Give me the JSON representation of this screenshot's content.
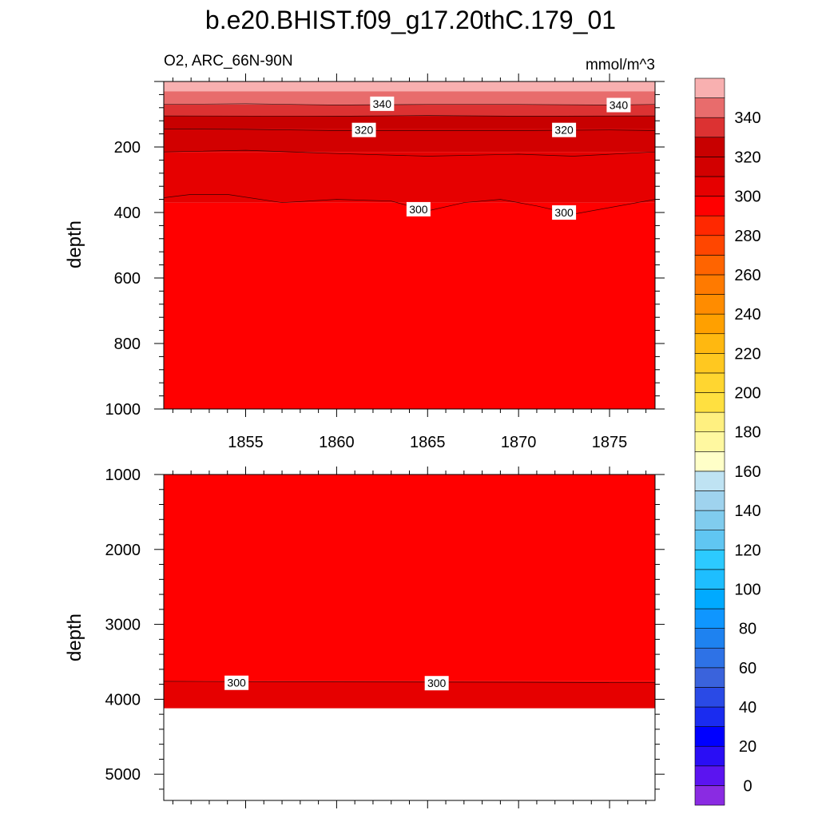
{
  "chart_data": {
    "type": "heatmap",
    "title": "b.e20.BHIST.f09_g17.20thC.179_01",
    "subtitle_left": "O2, ARC_66N-90N",
    "subtitle_right": "mmol/m^3",
    "colorbar": {
      "levels": [
        0,
        10,
        20,
        30,
        40,
        50,
        60,
        70,
        80,
        90,
        100,
        110,
        120,
        130,
        140,
        150,
        160,
        170,
        180,
        190,
        200,
        210,
        220,
        230,
        240,
        250,
        260,
        270,
        280,
        290,
        300,
        310,
        320,
        330,
        340,
        350
      ],
      "tick_labels": [
        "0",
        "20",
        "40",
        "60",
        "80",
        "100",
        "120",
        "140",
        "160",
        "180",
        "200",
        "220",
        "240",
        "260",
        "280",
        "300",
        "320",
        "340"
      ],
      "colors": [
        "#8a2be2",
        "#5b14f0",
        "#2a0ef5",
        "#0000ff",
        "#1a2cf0",
        "#2a4ae6",
        "#3a63dc",
        "#2e72e6",
        "#1e82f0",
        "#0f96ff",
        "#00aaff",
        "#1ebeff",
        "#2ccaff",
        "#60c6f2",
        "#80ccee",
        "#9fd3ee",
        "#bfe3f3",
        "#ffffc8",
        "#fff8a0",
        "#fff080",
        "#ffe040",
        "#ffd630",
        "#ffc820",
        "#ffb810",
        "#ffa000",
        "#ff8c00",
        "#ff7a00",
        "#ff6400",
        "#ff4600",
        "#ff2800",
        "#ff0000",
        "#e60000",
        "#d20000",
        "#c80000",
        "#dc3232",
        "#e86c6c",
        "#f8b0b0"
      ]
    },
    "panels": [
      {
        "xlim": [
          1850.5,
          1877.5
        ],
        "xticks": [
          1855,
          1860,
          1865,
          1870,
          1875
        ],
        "ylim": [
          0,
          1000
        ],
        "ylabel": "depth",
        "yticks": [
          200,
          400,
          600,
          800,
          1000
        ],
        "bands": [
          {
            "top": 0,
            "bottom": 30,
            "value": 355
          },
          {
            "top": 30,
            "bottom": 70,
            "value": 345
          },
          {
            "top": 70,
            "bottom": 105,
            "value": 335
          },
          {
            "top": 105,
            "bottom": 145,
            "value": 325
          },
          {
            "top": 145,
            "bottom": 215,
            "value": 315
          },
          {
            "top": 215,
            "bottom": 370,
            "value": 305
          },
          {
            "top": 370,
            "bottom": 1000,
            "value": 295
          }
        ],
        "contours": [
          {
            "level": 340,
            "x": [
              1850.5,
              1855,
              1860,
              1865,
              1870,
              1875,
              1877.5
            ],
            "y": [
              70,
              68,
              72,
              70,
              70,
              72,
              70
            ]
          },
          {
            "level": 330,
            "x": [
              1850.5,
              1860,
              1865,
              1870,
              1877.5
            ],
            "y": [
              105,
              106,
              104,
              106,
              105
            ]
          },
          {
            "level": 320,
            "x": [
              1850.5,
              1855,
              1860,
              1865,
              1870,
              1875,
              1877.5
            ],
            "y": [
              145,
              146,
              150,
              150,
              150,
              148,
              150
            ]
          },
          {
            "level": 310,
            "x": [
              1850.5,
              1855,
              1860,
              1865,
              1870,
              1873,
              1877.5
            ],
            "y": [
              215,
              210,
              220,
              228,
              222,
              228,
              215
            ]
          },
          {
            "level": 300,
            "x": [
              1850.5,
              1852,
              1854,
              1857,
              1860,
              1863,
              1865,
              1867,
              1869,
              1871,
              1873,
              1875,
              1877.5
            ],
            "y": [
              355,
              345,
              345,
              370,
              360,
              365,
              395,
              370,
              360,
              380,
              405,
              385,
              360
            ]
          }
        ],
        "contour_labels": [
          {
            "text": "340",
            "x": 1862.5,
            "y": 68
          },
          {
            "text": "340",
            "x": 1875.5,
            "y": 72
          },
          {
            "text": "320",
            "x": 1861.5,
            "y": 148
          },
          {
            "text": "320",
            "x": 1872.5,
            "y": 148
          },
          {
            "text": "300",
            "x": 1864.5,
            "y": 390
          },
          {
            "text": "300",
            "x": 1872.5,
            "y": 400
          }
        ]
      },
      {
        "xlim": [
          1850.5,
          1877.5
        ],
        "ylim": [
          1000,
          5350
        ],
        "ylabel": "depth",
        "yticks": [
          1000,
          2000,
          3000,
          4000,
          5000
        ],
        "bands": [
          {
            "top": 1000,
            "bottom": 3760,
            "value": 295
          },
          {
            "top": 3760,
            "bottom": 4120,
            "value": 305
          }
        ],
        "no_data_below": 4120,
        "contours": [
          {
            "level": 300,
            "x": [
              1850.5,
              1860,
              1870,
              1877.5
            ],
            "y": [
              3760,
              3768,
              3772,
              3780
            ]
          }
        ],
        "contour_labels": [
          {
            "text": "300",
            "x": 1854.5,
            "y": 3780
          },
          {
            "text": "300",
            "x": 1865.5,
            "y": 3785
          }
        ]
      }
    ]
  }
}
